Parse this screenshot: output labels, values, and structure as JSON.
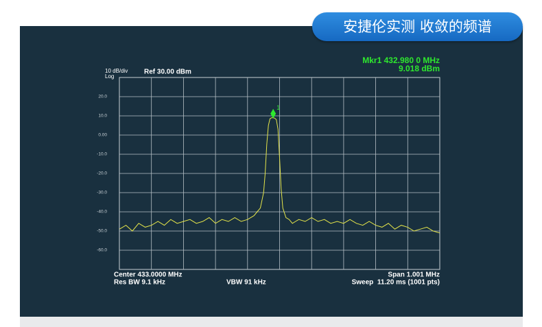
{
  "badge": "安捷伦实测 收敛的频谱",
  "chart_data": {
    "type": "line",
    "scale_label": "10 dB/div",
    "scale_mode": "Log",
    "ref_label": "Ref 30.00 dBm",
    "marker_readout": [
      "Mkr1 432.980 0 MHz",
      "9.018 dBm"
    ],
    "marker": {
      "label": "1",
      "x": 432.98,
      "y": 9.018,
      "color": "#2ee82e"
    },
    "footer": [
      "Center 433.0000 MHz",
      "Res BW 9.1 kHz",
      "VBW 91 kHz",
      "Span 1.001 MHz",
      "Sweep  11.20 ms (1001 pts)"
    ],
    "xlim": [
      432.4995,
      433.5005
    ],
    "ylim": [
      -70,
      30
    ],
    "yticks": [
      {
        "value": 20,
        "label": "20.0"
      },
      {
        "value": 10,
        "label": "10.0"
      },
      {
        "value": 0,
        "label": "0.00"
      },
      {
        "value": -10,
        "label": "-10.0"
      },
      {
        "value": -20,
        "label": "-20.0"
      },
      {
        "value": -30,
        "label": "-30.0"
      },
      {
        "value": -40,
        "label": "-40.0"
      },
      {
        "value": -50,
        "label": "-50.0"
      },
      {
        "value": -60,
        "label": "-60.0"
      }
    ],
    "grid": true,
    "series": [
      {
        "color": "#e6e64a",
        "x": [
          432.5,
          432.52,
          432.54,
          432.56,
          432.58,
          432.6,
          432.62,
          432.64,
          432.66,
          432.68,
          432.7,
          432.72,
          432.74,
          432.76,
          432.78,
          432.8,
          432.82,
          432.84,
          432.86,
          432.88,
          432.9,
          432.92,
          432.93,
          432.94,
          432.95,
          432.955,
          432.96,
          432.965,
          432.97,
          432.975,
          432.98,
          432.985,
          432.99,
          432.995,
          433.0,
          433.005,
          433.01,
          433.02,
          433.03,
          433.04,
          433.05,
          433.06,
          433.08,
          433.1,
          433.12,
          433.14,
          433.16,
          433.18,
          433.2,
          433.22,
          433.24,
          433.26,
          433.28,
          433.3,
          433.32,
          433.34,
          433.36,
          433.38,
          433.4,
          433.42,
          433.44,
          433.46,
          433.48,
          433.5
        ],
        "values": [
          -49,
          -47,
          -50,
          -46,
          -48,
          -47,
          -45,
          -47,
          -44,
          -46,
          -45,
          -44,
          -46,
          -45,
          -43,
          -46,
          -44,
          -45,
          -43,
          -45,
          -44,
          -42,
          -40,
          -38,
          -30,
          -20,
          -5,
          5,
          8.5,
          9,
          9,
          8.8,
          8,
          3,
          -12,
          -28,
          -38,
          -43,
          -44,
          -46,
          -45,
          -44,
          -45,
          -43,
          -45,
          -44,
          -46,
          -45,
          -46,
          -44,
          -46,
          -47,
          -45,
          -47,
          -48,
          -46,
          -49,
          -47,
          -48,
          -50,
          -49,
          -48,
          -50,
          -51
        ]
      }
    ]
  }
}
